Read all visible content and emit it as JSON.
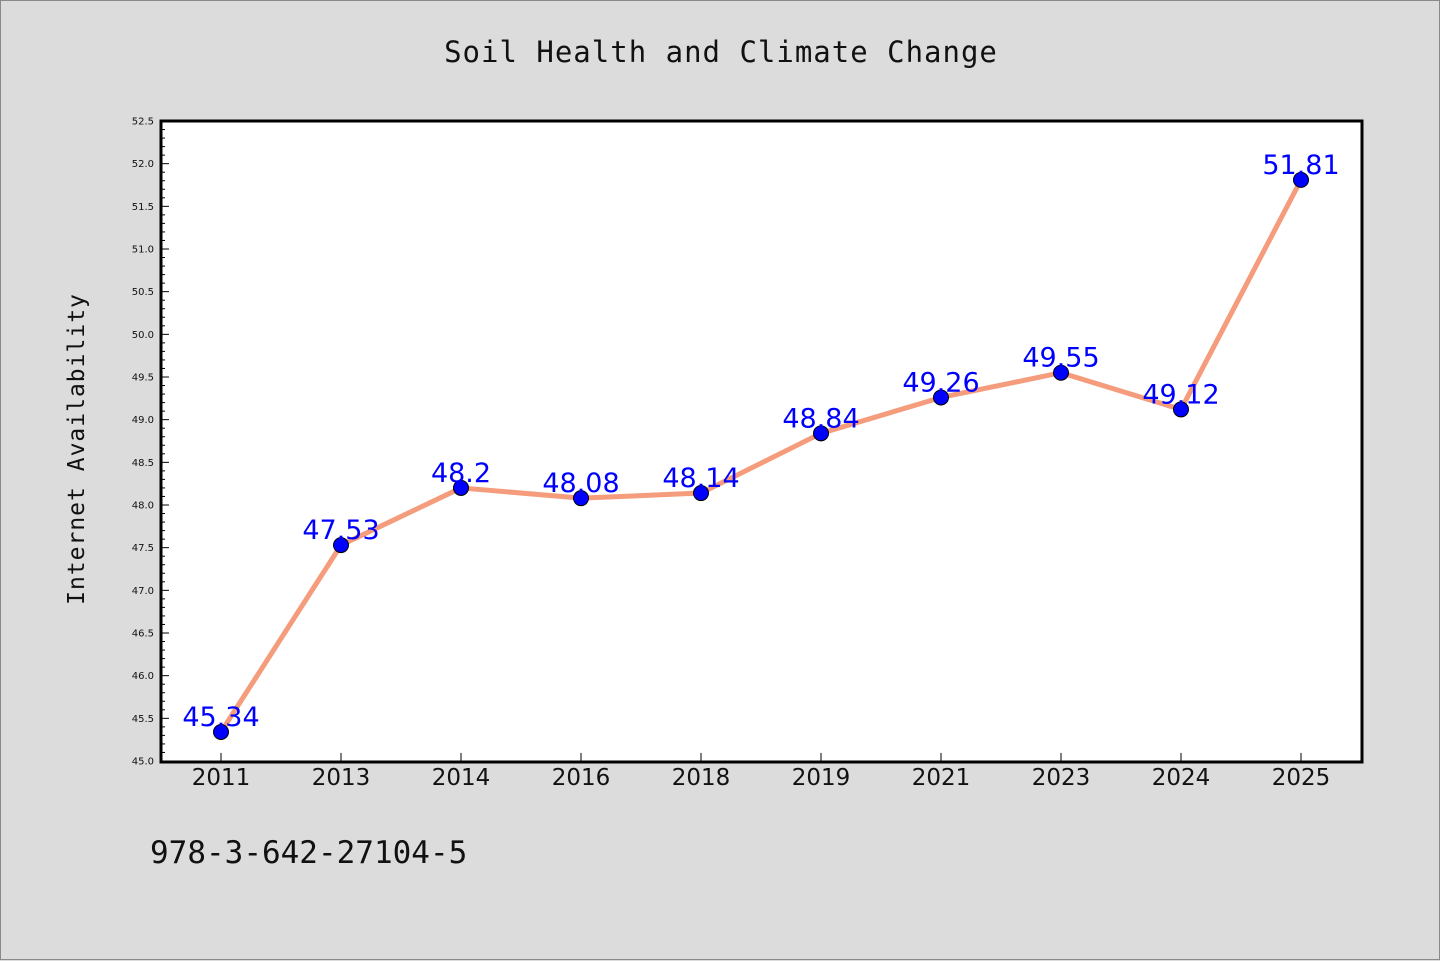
{
  "chart_data": {
    "type": "line",
    "title": "Soil Health and Climate Change",
    "xlabel": "",
    "ylabel": "Internet Availability",
    "categories": [
      "2011",
      "2013",
      "2014",
      "2016",
      "2018",
      "2019",
      "2021",
      "2023",
      "2024",
      "2025"
    ],
    "values": [
      45.34,
      47.53,
      48.2,
      48.08,
      48.14,
      48.84,
      49.26,
      49.55,
      49.12,
      51.81
    ],
    "data_labels": [
      "45.34",
      "47.53",
      "48.2",
      "48.08",
      "48.14",
      "48.84",
      "49.26",
      "49.55",
      "49.12",
      "51.81"
    ],
    "ylim": [
      45.0,
      52.5
    ],
    "yticks": [
      "45.0",
      "45.5",
      "46.0",
      "46.5",
      "47.0",
      "47.5",
      "48.0",
      "48.5",
      "49.0",
      "49.5",
      "50.0",
      "50.5",
      "51.0",
      "51.5",
      "52.0",
      "52.5"
    ],
    "grid": false,
    "line_color": "#f59c7c",
    "marker_color": "#0000ff",
    "label_color": "#0000ff",
    "background_color": "#dcdcdc",
    "plot_background_color": "#ffffff"
  },
  "footer": {
    "code": "978-3-642-27104-5"
  }
}
